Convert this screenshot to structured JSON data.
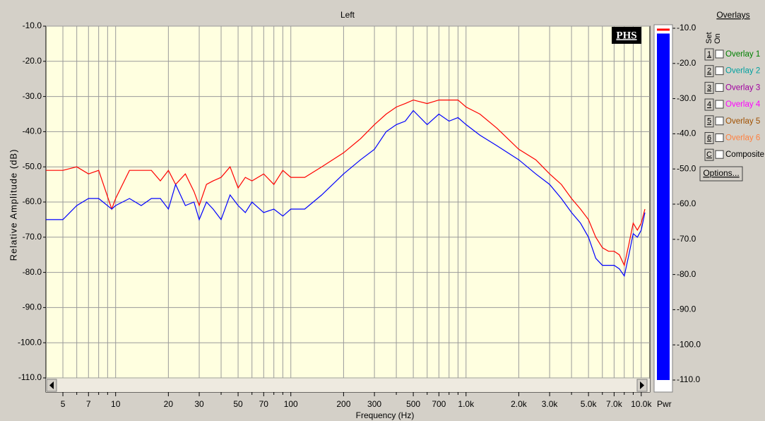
{
  "chart_data": {
    "type": "line",
    "title": "Left",
    "x_label": "Frequency (Hz)",
    "y_label": "Relative Amplitude (dB)",
    "x_scale": "log",
    "xlim": [
      4,
      11200
    ],
    "ylim": [
      -110,
      -10
    ],
    "grid": true,
    "xticks": [
      5,
      7,
      10,
      20,
      30,
      50,
      70,
      100,
      200,
      300,
      500,
      700,
      {
        "value": 1000,
        "label": "1.0k"
      },
      {
        "value": 2000,
        "label": "2.0k"
      },
      {
        "value": 3000,
        "label": "3.0k"
      },
      {
        "value": 5000,
        "label": "5.0k"
      },
      {
        "value": 7000,
        "label": "7.0k"
      },
      {
        "value": 10000,
        "label": "10.0k"
      }
    ],
    "xminor": [
      6,
      8,
      9,
      40,
      60,
      80,
      90,
      400,
      600,
      800,
      900,
      4000,
      6000,
      8000,
      9000
    ],
    "yticks": [
      {
        "value": -10,
        "label": "-10.0"
      },
      {
        "value": -20,
        "label": "-20.0"
      },
      {
        "value": -30,
        "label": "-30.0"
      },
      {
        "value": -40,
        "label": "-40.0"
      },
      {
        "value": -50,
        "label": "-50.0"
      },
      {
        "value": -60,
        "label": "-60.0"
      },
      {
        "value": -70,
        "label": "-70.0"
      },
      {
        "value": -80,
        "label": "-80.0"
      },
      {
        "value": -90,
        "label": "-90.0"
      },
      {
        "value": -100,
        "label": "-100.0"
      },
      {
        "value": -110,
        "label": "-110.0"
      }
    ],
    "x": [
      4,
      5,
      6,
      7,
      8,
      9.5,
      10,
      12,
      14,
      16,
      18,
      20,
      22,
      25,
      28,
      30,
      33,
      36,
      40,
      45,
      50,
      55,
      60,
      70,
      80,
      90,
      100,
      120,
      150,
      200,
      250,
      300,
      350,
      400,
      450,
      500,
      600,
      700,
      800,
      900,
      1000,
      1200,
      1500,
      2000,
      2500,
      3000,
      3500,
      4000,
      4500,
      5000,
      5500,
      6000,
      6500,
      7000,
      7500,
      8000,
      8500,
      9000,
      9500,
      10000,
      10500
    ],
    "series": [
      {
        "color": "#ff0000",
        "values": [
          -51,
          -51,
          -50,
          -52,
          -51,
          -62,
          -59,
          -51,
          -51,
          -51,
          -54,
          -51,
          -55,
          -52,
          -57,
          -61,
          -55,
          -54,
          -53,
          -50,
          -56,
          -53,
          -54,
          -52,
          -55,
          -51,
          -53,
          -53,
          -50,
          -46,
          -42,
          -38,
          -35,
          -33,
          -32,
          -31,
          -32,
          -31,
          -31,
          -31,
          -33,
          -35,
          -39,
          -45,
          -48,
          -52,
          -55,
          -59,
          -62,
          -65,
          -70,
          -73,
          -74,
          -74,
          -75,
          -78,
          -72,
          -66,
          -68,
          -66,
          -62
        ]
      },
      {
        "color": "#0000ff",
        "values": [
          -65,
          -65,
          -61,
          -59,
          -59,
          -62,
          -61,
          -59,
          -61,
          -59,
          -59,
          -62,
          -55,
          -61,
          -60,
          -65,
          -60,
          -62,
          -65,
          -58,
          -61,
          -63,
          -60,
          -63,
          -62,
          -64,
          -62,
          -62,
          -58,
          -52,
          -48,
          -45,
          -40,
          -38,
          -37,
          -34,
          -38,
          -35,
          -37,
          -36,
          -38,
          -41,
          -44,
          -48,
          -52,
          -55,
          -59,
          -63,
          -66,
          -70,
          -76,
          -78,
          -78,
          -78,
          -79,
          -81,
          -75,
          -69,
          -70,
          -68,
          -63
        ]
      }
    ],
    "logo": "PHS"
  },
  "meter": {
    "label": "Pwr",
    "value": -11.5,
    "peak": -10.5,
    "bar_color": "#0000ff",
    "peak_color": "#ff0000"
  },
  "overlays": {
    "title": "Overlays",
    "set_label": "Set",
    "on_label": "On",
    "options": "Options...",
    "items": [
      {
        "key": "1",
        "label": "Overlay 1",
        "color": "#008000"
      },
      {
        "key": "2",
        "label": "Overlay 2",
        "color": "#00a0a0"
      },
      {
        "key": "3",
        "label": "Overlay 3",
        "color": "#a000a0"
      },
      {
        "key": "4",
        "label": "Overlay 4",
        "color": "#ff00ff"
      },
      {
        "key": "5",
        "label": "Overlay 5",
        "color": "#a05000"
      },
      {
        "key": "6",
        "label": "Overlay 6",
        "color": "#ff8040"
      },
      {
        "key": "C",
        "label": "Composite",
        "color": "#000000"
      }
    ]
  }
}
